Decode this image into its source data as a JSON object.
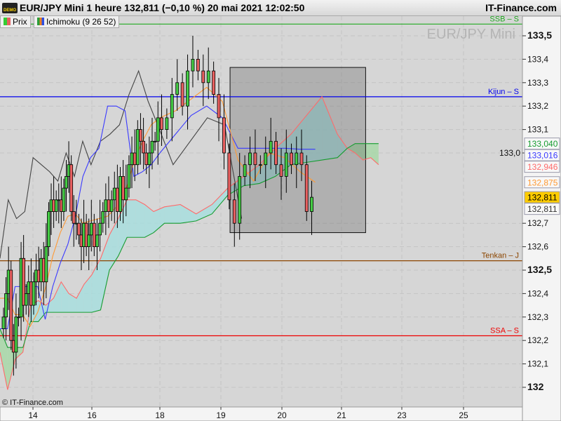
{
  "header": {
    "title": "EUR/JPY Mini 1 heure 132,811 (−0,10 %) 20 mai 2021 12:02:50",
    "brand": "IT-Finance.com",
    "demo_badge": "DEMO",
    "watermark": "EUR/JPY Mini",
    "copyright": "© IT-Finance.com"
  },
  "legend": [
    {
      "label": "Prix",
      "colors": [
        "#33cc33",
        "#e86060"
      ]
    },
    {
      "label": "Ichimoku (9 26 52)",
      "colors": [
        "#2a9d3a",
        "#f08020",
        "#3050e0"
      ]
    }
  ],
  "chart_data": {
    "type": "candlestick",
    "xlabel": "",
    "ylabel": "",
    "x_ticks": [
      {
        "day": 14,
        "label": "14"
      },
      {
        "day": 16,
        "label": "16"
      },
      {
        "day": 18,
        "label": "18"
      },
      {
        "day": 19,
        "label": "19"
      },
      {
        "day": 20,
        "label": "20"
      },
      {
        "day": 21,
        "label": "21"
      },
      {
        "day": 23,
        "label": "23"
      },
      {
        "day": 25,
        "label": "25"
      }
    ],
    "y_ticks": [
      {
        "v": 133.5,
        "label": "133,5",
        "bold": true
      },
      {
        "v": 133.4,
        "label": "133,4"
      },
      {
        "v": 133.3,
        "label": "133,3"
      },
      {
        "v": 133.2,
        "label": "133,2"
      },
      {
        "v": 133.1,
        "label": "133,1"
      },
      {
        "v": 133.0,
        "label": "133,0"
      },
      {
        "v": 132.7,
        "label": "132,7"
      },
      {
        "v": 132.6,
        "label": "132,6"
      },
      {
        "v": 132.5,
        "label": "132,5",
        "bold": true
      },
      {
        "v": 132.4,
        "label": "132,4"
      },
      {
        "v": 132.3,
        "label": "132,3"
      },
      {
        "v": 132.2,
        "label": "132,2"
      },
      {
        "v": 132.1,
        "label": "132,1"
      },
      {
        "v": 132.0,
        "label": "132",
        "bold": true
      }
    ],
    "ylim": [
      131.9,
      133.65
    ],
    "grid": true,
    "candles": {
      "from_day": 13.0,
      "to_day": 20.5,
      "close": [
        132.3,
        132.4,
        132.5,
        132.2,
        132.15,
        132.3,
        132.3,
        132.55,
        132.35,
        132.4,
        132.45,
        132.35,
        132.45,
        132.5,
        132.45,
        132.55,
        132.45,
        132.6,
        132.75,
        132.8,
        132.75,
        132.8,
        132.8,
        132.75,
        132.85,
        132.9,
        132.95,
        132.75,
        132.7,
        132.7,
        132.65,
        132.6,
        132.7,
        132.6,
        132.65,
        132.7,
        132.6,
        132.65,
        132.7,
        132.75,
        132.8,
        132.75,
        132.8,
        132.85,
        132.75,
        132.9,
        132.8,
        132.85,
        132.95,
        133.0,
        132.95,
        133.1,
        133.05,
        133.0,
        132.95,
        133.0,
        133.05,
        133.05,
        133.15,
        133.1,
        133.15,
        133.25,
        133.3,
        133.2,
        133.35,
        133.4,
        133.35,
        133.3,
        133.35,
        133.25,
        133.15,
        133.0,
        132.8,
        132.7,
        132.9,
        132.95,
        133.0,
        132.95,
        132.95,
        133.0,
        133.05,
        132.95,
        132.9,
        133.0,
        132.95,
        133.0,
        132.95,
        132.75,
        132.811
      ]
    },
    "series": [
      {
        "name": "Tenkan",
        "color": "#ff9933",
        "from_day": 12.88,
        "to_day": 20.56,
        "values": [
          132.38,
          132.38,
          132.31,
          132.31,
          132.26,
          132.32,
          132.42,
          132.56,
          132.66,
          132.73,
          132.74,
          132.7,
          132.71,
          132.72,
          132.73,
          132.77,
          132.83,
          132.96,
          133.05,
          133.12,
          133.15,
          133.18,
          133.23,
          133.28,
          133.22,
          132.97,
          132.88,
          133.0,
          132.98,
          132.92,
          132.875
        ]
      },
      {
        "name": "Kijun",
        "color": "#3a3aff",
        "from_day": 12.88,
        "to_day": 20.56,
        "values": [
          132.25,
          132.25,
          132.43,
          132.43,
          132.43,
          132.43,
          132.29,
          132.43,
          132.53,
          132.61,
          132.73,
          132.9,
          132.98,
          133.02,
          133.2,
          133.2,
          133.18,
          132.9,
          132.92,
          132.95,
          133.0,
          133.08,
          133.16,
          133.2,
          133.15,
          133.02,
          133.02,
          133.02,
          133.02,
          133.016,
          133.016
        ]
      },
      {
        "name": "Chikou",
        "color": "#444444",
        "from_day": 12.88,
        "to_day": 19.34,
        "values": [
          132.55,
          132.8,
          132.72,
          132.75,
          132.98,
          132.95,
          132.92,
          132.88,
          133.0,
          132.9,
          133.05,
          132.95,
          133.05,
          133.08,
          133.12,
          133.25,
          133.35,
          133.22,
          133.12,
          132.95,
          133.05,
          133.15,
          133.12,
          132.72
        ]
      },
      {
        "name": "SSA",
        "color": "#ff6a6a",
        "from_day": 12.88,
        "to_day": 22.23,
        "values": [
          132.15,
          131.99,
          132.12,
          132.15,
          132.35,
          132.37,
          132.35,
          132.38,
          132.45,
          132.4,
          132.38,
          132.44,
          132.48,
          132.55,
          132.65,
          132.72,
          132.8,
          132.8,
          132.78,
          132.75,
          132.77,
          132.78,
          132.74,
          132.78,
          132.85,
          132.9,
          132.95,
          133.02,
          133.08,
          133.16,
          133.24,
          133.08,
          133.02,
          133.0,
          132.97,
          132.98,
          132.95
        ]
      },
      {
        "name": "SSB",
        "color": "#169c30",
        "from_day": 12.88,
        "to_day": 22.23,
        "values": [
          132.25,
          132.17,
          132.17,
          132.17,
          132.28,
          132.28,
          132.32,
          132.32,
          132.32,
          132.32,
          132.32,
          132.32,
          132.32,
          132.33,
          132.5,
          132.56,
          132.64,
          132.64,
          132.64,
          132.66,
          132.7,
          132.7,
          132.71,
          132.74,
          132.82,
          132.86,
          132.87,
          132.9,
          132.95,
          132.96,
          132.97,
          132.98,
          133.02,
          133.04,
          133.04,
          133.04,
          133.04
        ]
      }
    ],
    "cloud_colors": {
      "bullish": "#a8dede",
      "bearish": "#a8d8a8"
    },
    "hlines": [
      {
        "label": "SSB – S",
        "v": 133.55,
        "color": "#22aa22"
      },
      {
        "label": "Kijun – S",
        "v": 133.24,
        "color": "#0000ee"
      },
      {
        "label": "Tenkan – J",
        "v": 132.54,
        "color": "#8b4500"
      },
      {
        "label": "SSA – S",
        "v": 132.22,
        "color": "#ee0000"
      }
    ],
    "zone": {
      "from_day": 19.15,
      "to_day": 21.8,
      "high": 133.365,
      "low": 132.66
    },
    "price_tags": [
      {
        "label": "133,040",
        "v": 133.04,
        "color": "#169c30"
      },
      {
        "label": "133,016",
        "v": 133.016,
        "color": "#3a3aff"
      },
      {
        "label": "132,946",
        "v": 132.946,
        "color": "#ff6a6a"
      },
      {
        "label": "132,875",
        "v": 132.875,
        "color": "#ff9933"
      },
      {
        "label": "132,811",
        "v": 132.811,
        "color": "#000000",
        "bg": "#ffcc00"
      },
      {
        "label": "132,811",
        "v": 132.811,
        "color": "#333333",
        "below": true
      }
    ]
  }
}
